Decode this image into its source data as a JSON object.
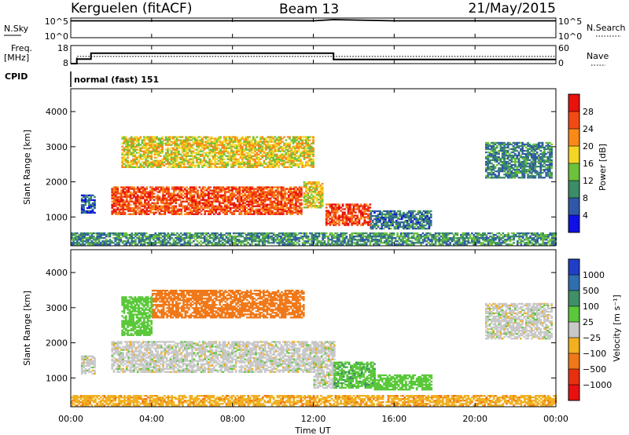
{
  "header": {
    "station": "Kerguelen (fitACF)",
    "beam": "Beam 13",
    "date": "21/May/2015"
  },
  "noise_panel": {
    "left_label": "N.Sky",
    "right_label": "N.Search",
    "left_ticks": [
      "10^5",
      "10^0"
    ],
    "right_ticks": [
      "10^5",
      "10^0"
    ]
  },
  "freq_panel": {
    "left_label_1": "Freq.",
    "left_label_2": "[MHz]",
    "right_label": "Nave",
    "left_ticks": [
      "18",
      "8"
    ],
    "right_ticks": [
      "60",
      "0"
    ]
  },
  "cpid": {
    "label": "CPID",
    "program": "normal (fast) 151"
  },
  "power_panel": {
    "ylabel": "Slant Range [km]",
    "colorbar_label": "Power [dB]",
    "colorbar_ticks": [
      "28",
      "24",
      "20",
      "16",
      "12",
      "8",
      "4"
    ],
    "colorbar_colors": [
      "#e8120e",
      "#f24a12",
      "#f98a18",
      "#f3d525",
      "#6cc23a",
      "#3b8c68",
      "#2f59a8",
      "#1010e6"
    ]
  },
  "velocity_panel": {
    "ylabel": "Slant Range [km]",
    "colorbar_label": "Velocity [m s⁻¹]",
    "colorbar_ticks": [
      "1000",
      "500",
      "100",
      "25",
      "−25",
      "−100",
      "−500",
      "−1000"
    ],
    "colorbar_colors": [
      "#1f3fc6",
      "#2f6fb0",
      "#3f8f68",
      "#5ac83a",
      "#c8c8c8",
      "#f0b020",
      "#f07818",
      "#e83010",
      "#e81010"
    ]
  },
  "axes": {
    "xlabel": "Time UT",
    "xticks": [
      "00:00",
      "04:00",
      "08:00",
      "12:00",
      "16:00",
      "20:00",
      "00:00"
    ],
    "yticks": [
      "1000",
      "2000",
      "3000",
      "4000"
    ]
  },
  "chart_data": [
    {
      "type": "line",
      "title": "N.Sky / N.Search",
      "x_hours": [
        0,
        0.3,
        4,
        12,
        13,
        16,
        20,
        24
      ],
      "values_log10": [
        4.3,
        4.3,
        4.3,
        4.3,
        4.6,
        4.3,
        4.3,
        4.3
      ],
      "ylim_log10": [
        0,
        5
      ]
    },
    {
      "type": "line",
      "title": "Frequency / Nave",
      "series": [
        {
          "name": "Freq.",
          "x_hours": [
            0,
            0.3,
            1.0,
            13.0,
            24
          ],
          "values": [
            8,
            10.5,
            13.8,
            10.3,
            10.3
          ]
        },
        {
          "name": "Nave",
          "x_hours": [
            0,
            0.3,
            1.0,
            13.0,
            24
          ],
          "values": [
            0,
            24,
            24,
            24,
            24
          ]
        }
      ],
      "freq_ylim": [
        8,
        18
      ],
      "nave_ylim": [
        0,
        60
      ]
    },
    {
      "type": "heatmap",
      "title": "Power",
      "xlabel": "Time UT",
      "ylabel": "Slant Range [km]",
      "x_hours_range": [
        0,
        24
      ],
      "ylim": [
        180,
        4650
      ],
      "colorscale_db": [
        0,
        32
      ],
      "regions": [
        {
          "t0": 2.0,
          "t1": 11.4,
          "r0": 1060,
          "r1": 1860,
          "db": 26
        },
        {
          "t0": 11.5,
          "t1": 12.4,
          "r0": 1250,
          "r1": 2000,
          "db": 18
        },
        {
          "t0": 12.6,
          "t1": 14.8,
          "r0": 750,
          "r1": 1350,
          "db": 27
        },
        {
          "t0": 14.8,
          "t1": 17.8,
          "r0": 650,
          "r1": 1150,
          "db": 8
        },
        {
          "t0": 0.5,
          "t1": 1.2,
          "r0": 1100,
          "r1": 1600,
          "db": 6
        },
        {
          "t0": 2.5,
          "t1": 12.0,
          "r0": 2400,
          "r1": 3300,
          "db": 18
        },
        {
          "t0": 20.5,
          "t1": 23.8,
          "r0": 2100,
          "r1": 3100,
          "db": 9
        },
        {
          "t0": 0.0,
          "t1": 24.0,
          "r0": 200,
          "r1": 550,
          "db": 10
        }
      ]
    },
    {
      "type": "heatmap",
      "title": "Velocity",
      "xlabel": "Time UT",
      "ylabel": "Slant Range [km]",
      "x_hours_range": [
        0,
        24
      ],
      "ylim": [
        180,
        4650
      ],
      "colorscale_ms": [
        -1000,
        1000
      ],
      "regions": [
        {
          "t0": 2.0,
          "t1": 12.0,
          "r0": 1150,
          "r1": 2050,
          "v": 0
        },
        {
          "t0": 12.0,
          "t1": 13.0,
          "r0": 700,
          "r1": 2050,
          "v": 0
        },
        {
          "t0": 13.0,
          "t1": 15.0,
          "r0": 700,
          "r1": 1450,
          "v": 80
        },
        {
          "t0": 15.0,
          "t1": 17.8,
          "r0": 650,
          "r1": 1100,
          "v": 60
        },
        {
          "t0": 0.5,
          "t1": 1.2,
          "r0": 1100,
          "r1": 1600,
          "v": 0
        },
        {
          "t0": 4.0,
          "t1": 11.5,
          "r0": 2700,
          "r1": 3500,
          "v": -300
        },
        {
          "t0": 2.5,
          "t1": 4.0,
          "r0": 2200,
          "r1": 3300,
          "v": 60
        },
        {
          "t0": 20.5,
          "t1": 23.8,
          "r0": 2100,
          "r1": 3100,
          "v": 0
        },
        {
          "t0": 0.0,
          "t1": 24.0,
          "r0": 200,
          "r1": 500,
          "v": -80
        }
      ]
    }
  ]
}
